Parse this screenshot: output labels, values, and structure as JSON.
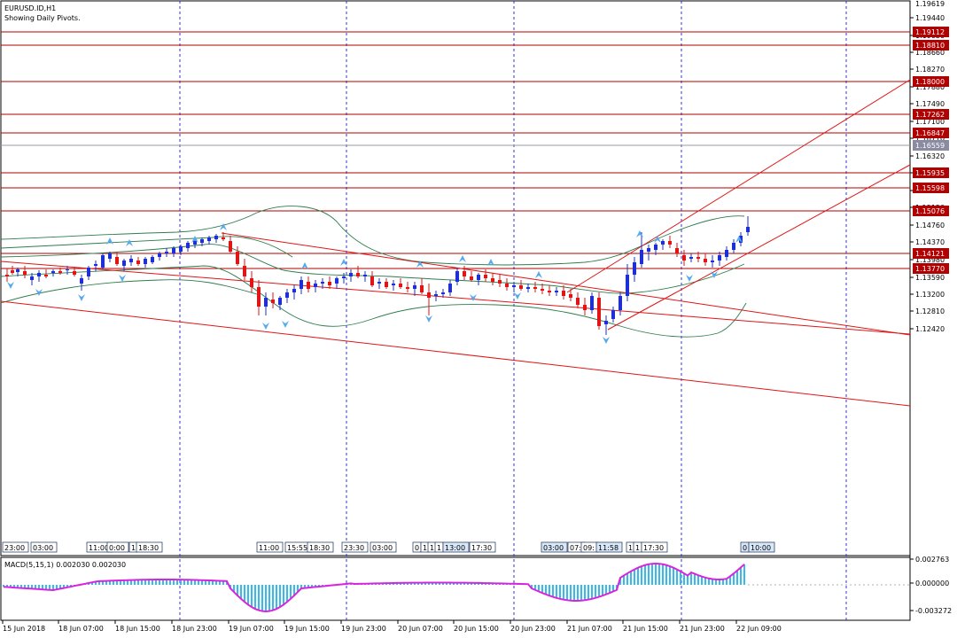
{
  "header": {
    "symbol_label": "EURUSD.ID,H1",
    "subtitle": "Showing Daily Pivots."
  },
  "colors": {
    "bull": "#1f2fd6",
    "bear": "#e01515",
    "level_line": "#b00000",
    "level_box": "#b00000",
    "last_price_box": "#8a8aa0",
    "band": "#2e7d4f",
    "trend": "#e01515",
    "grid": "#3333cc",
    "macd_hist": "#33bbee",
    "macd_signal": "#dd22dd",
    "arrow": "#55aaee"
  },
  "price_axis": {
    "ticks": [
      "1.19440",
      "1.19050",
      "1.18660",
      "1.18270",
      "1.17880",
      "1.17490",
      "1.17100",
      "1.16710",
      "1.16320",
      "1.15930",
      "1.15540",
      "1.15150",
      "1.14760",
      "1.14370",
      "1.13980",
      "1.13590",
      "1.13200",
      "1.12810",
      "1.12420"
    ],
    "top_value": "1.19619"
  },
  "levels": [
    {
      "label": "1.19112",
      "type": "pivot"
    },
    {
      "label": "1.18810",
      "type": "pivot"
    },
    {
      "label": "1.18000",
      "type": "pivot"
    },
    {
      "label": "1.17262",
      "type": "pivot"
    },
    {
      "label": "1.16847",
      "type": "pivot"
    },
    {
      "label": "1.16559",
      "type": "last"
    },
    {
      "label": "1.15935",
      "type": "pivot"
    },
    {
      "label": "1.15598",
      "type": "pivot"
    },
    {
      "label": "1.15076",
      "type": "pivot"
    },
    {
      "label": "1.14121",
      "type": "pivot"
    },
    {
      "label": "1.13770",
      "type": "pivot"
    }
  ],
  "time_axis": {
    "labels": [
      "15 Jun 2018",
      "18 Jun 07:00",
      "18 Jun 15:00",
      "18 Jun 23:00",
      "19 Jun 07:00",
      "19 Jun 15:00",
      "19 Jun 23:00",
      "20 Jun 07:00",
      "20 Jun 15:00",
      "20 Jun 23:00",
      "21 Jun 07:00",
      "21 Jun 15:00",
      "21 Jun 23:00",
      "22 Jun 09:00"
    ]
  },
  "time_markers": [
    "23:00",
    "03:00",
    "11:00",
    "0:00",
    "1",
    "18:30",
    "11:00",
    "15:55",
    "18:30",
    "23:30",
    "03:00",
    "0",
    "1",
    "1",
    "1",
    "13:00",
    "17:30",
    "03:00",
    "07:",
    "09:",
    "11:58",
    "1",
    "1",
    "17:30",
    "0",
    "10:00"
  ],
  "macd": {
    "label": "MACD(5,15,1) 0.002030 0.002030",
    "ticks": [
      "0.002763",
      "0.000000",
      "-0.003272"
    ]
  }
}
